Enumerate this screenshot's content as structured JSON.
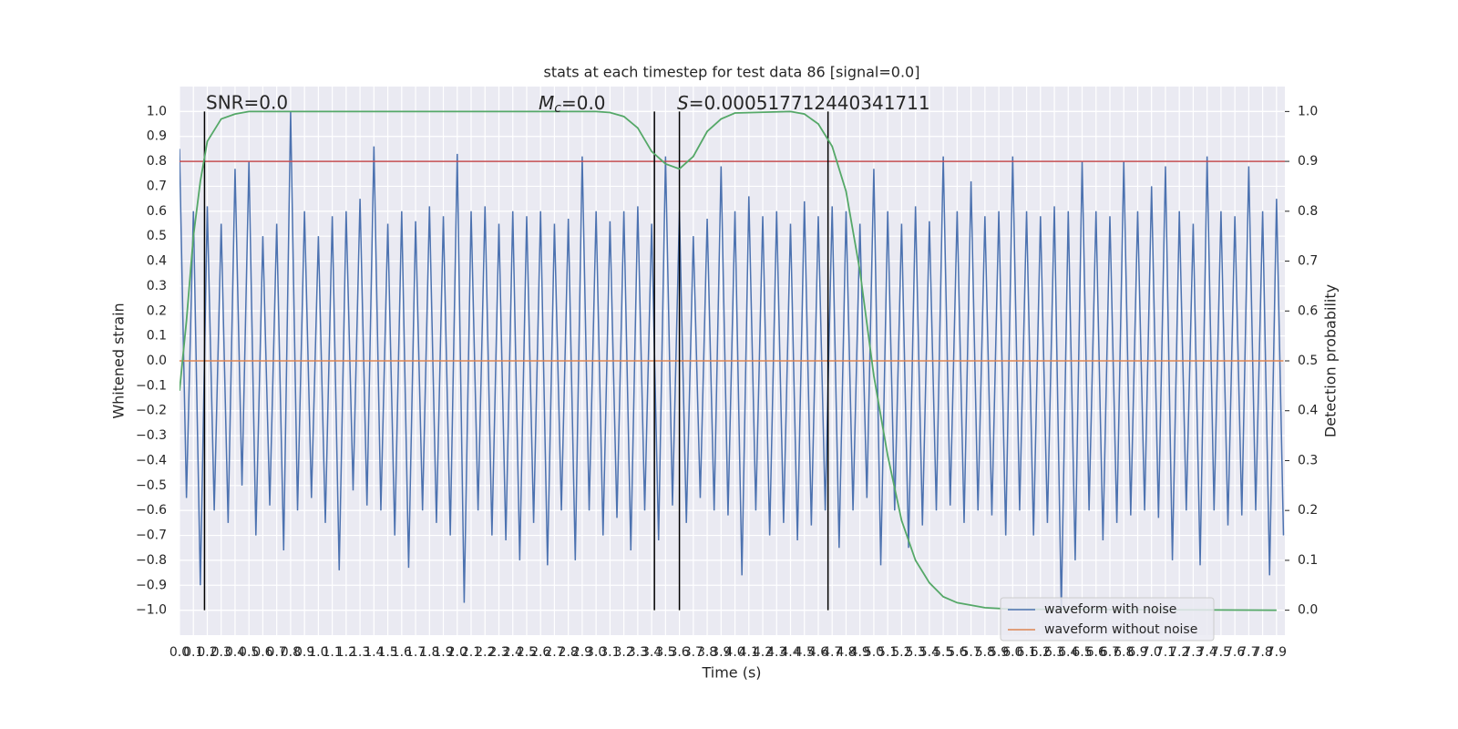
{
  "chart_data": {
    "type": "line",
    "title": "stats at each timestep for test data 86 [signal=0.0]",
    "x_label": "Time (s)",
    "y_label": "Whitened strain",
    "y2_label": "Detection probability",
    "annotations": {
      "snr": "SNR=0.0",
      "mc": {
        "symbol": "M",
        "sub": "c",
        "rest": "=0.0"
      },
      "s": {
        "symbol": "S",
        "rest": "=0.000517712440341711"
      }
    },
    "xlim": [
      0,
      7.96
    ],
    "ylim": [
      -1.1,
      1.1
    ],
    "y2lim": [
      -0.05,
      1.05
    ],
    "grid": true,
    "legend": "lower right",
    "xticks": [
      {
        "value": 0,
        "label": "0.0"
      },
      0.1,
      0.2,
      0.3,
      0.4,
      0.5,
      0.6,
      0.7,
      0.8,
      0.9,
      {
        "value": 1,
        "label": "1.0"
      },
      1.1,
      1.2,
      1.3,
      1.4,
      1.5,
      1.6,
      1.7,
      1.8,
      1.9,
      {
        "value": 2,
        "label": "2.0"
      },
      2.1,
      2.2,
      2.3,
      2.4,
      2.5,
      2.6,
      2.7,
      2.8,
      2.9,
      {
        "value": 3,
        "label": "3.0"
      },
      3.1,
      3.2,
      3.3,
      3.4,
      3.5,
      3.6,
      3.7,
      3.8,
      3.9,
      {
        "value": 4,
        "label": "4.0"
      },
      4.1,
      4.2,
      4.3,
      4.4,
      4.5,
      4.6,
      4.7,
      4.8,
      4.9,
      {
        "value": 5,
        "label": "5.0"
      },
      5.1,
      5.2,
      5.3,
      5.4,
      5.5,
      5.6,
      5.7,
      5.8,
      5.9,
      {
        "value": 6,
        "label": "6.0"
      },
      6.1,
      6.2,
      6.3,
      6.4,
      6.5,
      6.6,
      6.7,
      6.8,
      6.9,
      {
        "value": 7,
        "label": "7.0"
      },
      7.1,
      7.2,
      7.3,
      7.4,
      7.5,
      7.6,
      7.7,
      7.8,
      7.9
    ],
    "yticks": [
      {
        "value": 1,
        "label": "1.0"
      },
      0.9,
      0.8,
      0.7,
      0.6,
      0.5,
      0.4,
      0.3,
      0.2,
      0.1,
      {
        "value": 0,
        "label": "0.0"
      },
      {
        "value": -0.1,
        "label": "−0.1"
      },
      {
        "value": -0.2,
        "label": "−0.2"
      },
      {
        "value": -0.3,
        "label": "−0.3"
      },
      {
        "value": -0.4,
        "label": "−0.4"
      },
      {
        "value": -0.5,
        "label": "−0.5"
      },
      {
        "value": -0.6,
        "label": "−0.6"
      },
      {
        "value": -0.7,
        "label": "−0.7"
      },
      {
        "value": -0.8,
        "label": "−0.8"
      },
      {
        "value": -0.9,
        "label": "−0.9"
      },
      {
        "value": -1,
        "label": "−1.0"
      }
    ],
    "y2ticks": [
      {
        "value": 0,
        "label": "0.0"
      },
      0.1,
      0.2,
      0.3,
      0.4,
      0.5,
      0.6,
      0.7,
      0.8,
      0.9,
      {
        "value": 1,
        "label": "1.0"
      }
    ],
    "series": [
      {
        "name": "waveform with noise",
        "color": "#4c72b0",
        "x": [
          0,
          0.05,
          0.1,
          0.15,
          0.2,
          0.25,
          0.3,
          0.35,
          0.4,
          0.45,
          0.5,
          0.55,
          0.6,
          0.65,
          0.7,
          0.75,
          0.8,
          0.85,
          0.9,
          0.95,
          1,
          1.05,
          1.1,
          1.15,
          1.2,
          1.25,
          1.3,
          1.35,
          1.4,
          1.45,
          1.5,
          1.55,
          1.6,
          1.65,
          1.7,
          1.75,
          1.8,
          1.85,
          1.9,
          1.95,
          2,
          2.05,
          2.1,
          2.15,
          2.2,
          2.25,
          2.3,
          2.35,
          2.4,
          2.45,
          2.5,
          2.55,
          2.6,
          2.65,
          2.7,
          2.75,
          2.8,
          2.85,
          2.9,
          2.95,
          3,
          3.05,
          3.1,
          3.15,
          3.2,
          3.25,
          3.3,
          3.35,
          3.4,
          3.45,
          3.5,
          3.55,
          3.6,
          3.65,
          3.7,
          3.75,
          3.8,
          3.85,
          3.9,
          3.95,
          4,
          4.05,
          4.1,
          4.15,
          4.2,
          4.25,
          4.3,
          4.35,
          4.4,
          4.45,
          4.5,
          4.55,
          4.6,
          4.65,
          4.7,
          4.75,
          4.8,
          4.85,
          4.9,
          4.95,
          5,
          5.05,
          5.1,
          5.15,
          5.2,
          5.25,
          5.3,
          5.35,
          5.4,
          5.45,
          5.5,
          5.55,
          5.6,
          5.65,
          5.7,
          5.75,
          5.8,
          5.85,
          5.9,
          5.95,
          6,
          6.05,
          6.1,
          6.15,
          6.2,
          6.25,
          6.3,
          6.35,
          6.4,
          6.45,
          6.5,
          6.55,
          6.6,
          6.65,
          6.7,
          6.75,
          6.8,
          6.85,
          6.9,
          6.95,
          7,
          7.05,
          7.1,
          7.15,
          7.2,
          7.25,
          7.3,
          7.35,
          7.4,
          7.45,
          7.5,
          7.55,
          7.6,
          7.65,
          7.7,
          7.75,
          7.8,
          7.85,
          7.9,
          7.95
        ],
        "values": [
          0.85,
          -0.55,
          0.6,
          -0.9,
          0.62,
          -0.6,
          0.55,
          -0.65,
          0.77,
          -0.5,
          0.8,
          -0.7,
          0.5,
          -0.58,
          0.55,
          -0.76,
          1.0,
          -0.6,
          0.6,
          -0.55,
          0.5,
          -0.65,
          0.58,
          -0.84,
          0.6,
          -0.52,
          0.65,
          -0.58,
          0.86,
          -0.6,
          0.55,
          -0.7,
          0.6,
          -0.83,
          0.56,
          -0.6,
          0.62,
          -0.65,
          0.58,
          -0.7,
          0.83,
          -0.97,
          0.6,
          -0.6,
          0.62,
          -0.7,
          0.55,
          -0.72,
          0.6,
          -0.8,
          0.58,
          -0.65,
          0.6,
          -0.82,
          0.55,
          -0.6,
          0.57,
          -0.8,
          0.82,
          -0.6,
          0.6,
          -0.7,
          0.56,
          -0.63,
          0.6,
          -0.76,
          0.62,
          -0.6,
          0.55,
          -0.72,
          0.82,
          -0.58,
          0.6,
          -0.65,
          0.5,
          -0.55,
          0.57,
          -0.6,
          0.78,
          -0.62,
          0.6,
          -0.86,
          0.66,
          -0.6,
          0.58,
          -0.7,
          0.6,
          -0.65,
          0.55,
          -0.72,
          0.64,
          -0.66,
          0.58,
          -0.6,
          0.62,
          -0.75,
          0.6,
          -0.6,
          0.55,
          -0.55,
          0.77,
          -0.82,
          0.6,
          -0.6,
          0.55,
          -0.75,
          0.62,
          -0.66,
          0.56,
          -0.6,
          0.82,
          -0.58,
          0.6,
          -0.65,
          0.72,
          -0.6,
          0.58,
          -0.62,
          0.6,
          -0.7,
          0.82,
          -0.6,
          0.6,
          -0.7,
          0.58,
          -0.65,
          0.62,
          -1.0,
          0.6,
          -0.8,
          0.8,
          -0.6,
          0.6,
          -0.72,
          0.58,
          -0.65,
          0.8,
          -0.62,
          0.6,
          -0.6,
          0.7,
          -0.63,
          0.78,
          -0.8,
          0.6,
          -0.6,
          0.55,
          -0.82,
          0.82,
          -0.6,
          0.6,
          -0.66,
          0.58,
          -0.62,
          0.78,
          -0.6,
          0.6,
          -0.86,
          0.65,
          -0.7
        ]
      },
      {
        "name": "waveform without noise",
        "color": "#dd8452",
        "x": [
          0,
          7.95
        ],
        "values": [
          0,
          0
        ]
      }
    ],
    "probability": {
      "color": "#55a868",
      "axis": "y2",
      "x": [
        0,
        0.05,
        0.1,
        0.15,
        0.2,
        0.3,
        0.4,
        0.5,
        0.6,
        3.0,
        3.1,
        3.2,
        3.3,
        3.4,
        3.5,
        3.6,
        3.7,
        3.8,
        3.9,
        4.0,
        4.4,
        4.5,
        4.6,
        4.7,
        4.8,
        4.9,
        5.0,
        5.1,
        5.2,
        5.3,
        5.4,
        5.5,
        5.6,
        5.8,
        6.0,
        7.9
      ],
      "values": [
        0.44,
        0.58,
        0.75,
        0.86,
        0.94,
        0.985,
        0.995,
        1.0,
        1.0,
        1.0,
        0.998,
        0.99,
        0.967,
        0.92,
        0.895,
        0.885,
        0.91,
        0.96,
        0.985,
        0.997,
        1.0,
        0.995,
        0.975,
        0.93,
        0.84,
        0.68,
        0.47,
        0.31,
        0.18,
        0.1,
        0.055,
        0.027,
        0.015,
        0.005,
        0.002,
        0.0
      ]
    },
    "threshold": {
      "value": 0.8,
      "color": "#c44e52"
    },
    "vlines": [
      0.18,
      3.42,
      3.6,
      4.67
    ],
    "vline_color": "#000000"
  }
}
